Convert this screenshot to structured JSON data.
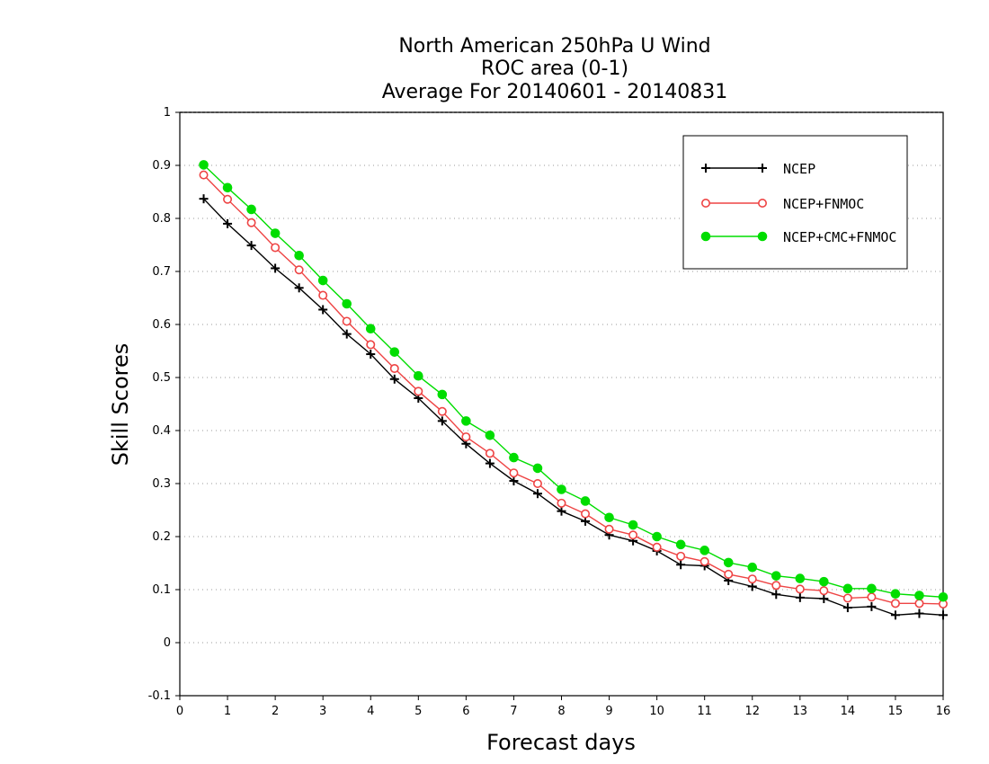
{
  "chart_data": {
    "type": "line",
    "title_lines": [
      "North American 250hPa U Wind",
      "ROC area (0-1)",
      "Average For 20140601 - 20140831"
    ],
    "xlabel": "Forecast days",
    "ylabel": "Skill Scores",
    "xlim": [
      0,
      16
    ],
    "ylim": [
      -0.1,
      1
    ],
    "xticks": [
      0,
      1,
      2,
      3,
      4,
      5,
      6,
      7,
      8,
      9,
      10,
      11,
      12,
      13,
      14,
      15,
      16
    ],
    "yticks": [
      -0.1,
      0,
      0.1,
      0.2,
      0.3,
      0.4,
      0.5,
      0.6,
      0.7,
      0.8,
      0.9,
      1
    ],
    "ytick_labels": [
      "-0.1",
      "0",
      "0.1",
      "0.2",
      "0.3",
      "0.4",
      "0.5",
      "0.6",
      "0.7",
      "0.8",
      "0.9",
      "1"
    ],
    "grid": "horizontal dotted",
    "legend_position": "top-right",
    "x": [
      0.5,
      1.0,
      1.5,
      2.0,
      2.5,
      3.0,
      3.5,
      4.0,
      4.5,
      5.0,
      5.5,
      6.0,
      6.5,
      7.0,
      7.5,
      8.0,
      8.5,
      9.0,
      9.5,
      10.0,
      10.5,
      11.0,
      11.5,
      12.0,
      12.5,
      13.0,
      13.5,
      14.0,
      14.5,
      15.0,
      15.5,
      16.0
    ],
    "series": [
      {
        "name": "NCEP",
        "color": "#000000",
        "marker": "plus",
        "values": [
          0.837,
          0.79,
          0.749,
          0.706,
          0.669,
          0.628,
          0.582,
          0.544,
          0.497,
          0.461,
          0.418,
          0.375,
          0.338,
          0.305,
          0.281,
          0.248,
          0.229,
          0.203,
          0.192,
          0.173,
          0.147,
          0.145,
          0.117,
          0.106,
          0.091,
          0.085,
          0.083,
          0.066,
          0.068,
          0.052,
          0.055,
          0.052
        ]
      },
      {
        "name": "NCEP+FNMOC",
        "color": "#ee4444",
        "marker": "open-circle",
        "values": [
          0.882,
          0.836,
          0.792,
          0.745,
          0.703,
          0.655,
          0.606,
          0.562,
          0.517,
          0.474,
          0.436,
          0.388,
          0.357,
          0.32,
          0.3,
          0.263,
          0.243,
          0.214,
          0.203,
          0.18,
          0.163,
          0.153,
          0.129,
          0.12,
          0.108,
          0.101,
          0.098,
          0.084,
          0.086,
          0.074,
          0.074,
          0.073
        ]
      },
      {
        "name": "NCEP+CMC+FNMOC",
        "color": "#00dd00",
        "marker": "filled-circle",
        "values": [
          0.901,
          0.858,
          0.817,
          0.772,
          0.73,
          0.683,
          0.639,
          0.592,
          0.548,
          0.503,
          0.468,
          0.418,
          0.391,
          0.349,
          0.329,
          0.289,
          0.267,
          0.236,
          0.222,
          0.2,
          0.185,
          0.174,
          0.151,
          0.142,
          0.126,
          0.121,
          0.115,
          0.102,
          0.102,
          0.092,
          0.089,
          0.086
        ]
      }
    ]
  }
}
